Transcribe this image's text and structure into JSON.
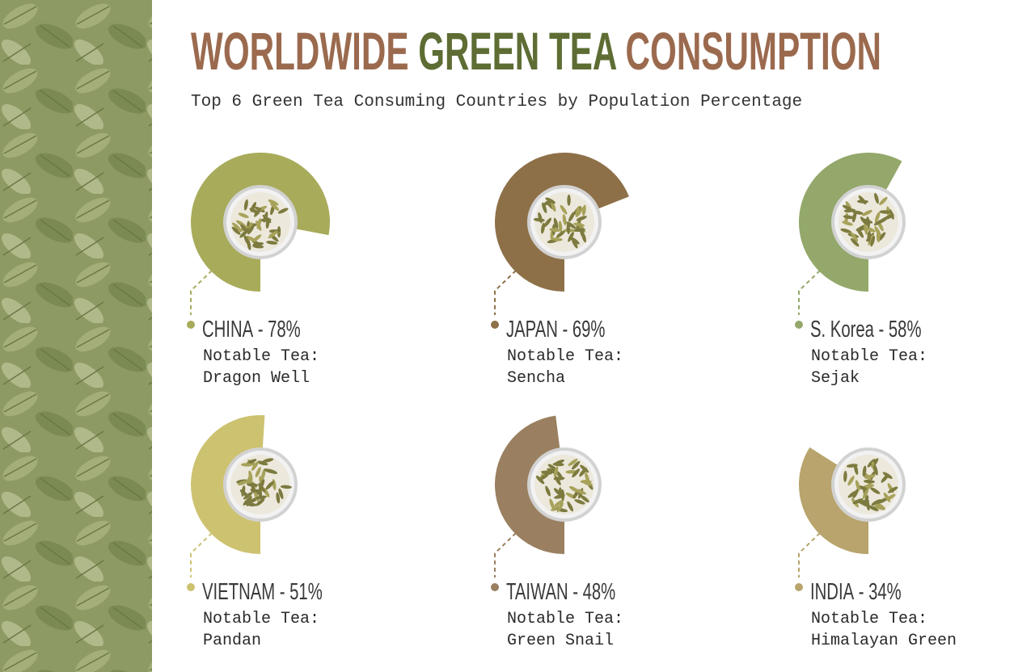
{
  "chart_data": {
    "type": "radial",
    "title": [
      "WORLDWIDE",
      "GREEN TEA",
      "CONSUMPTION"
    ],
    "subtitle": "Top 6 Green Tea Consuming Countries by Population Percentage",
    "categories": [
      "CHINA",
      "JAPAN",
      "S. Korea",
      "VIETNAM",
      "TAIWAN",
      "INDIA"
    ],
    "separator": "-",
    "values": [
      78,
      69,
      58,
      51,
      48,
      34
    ],
    "value_labels": [
      "78%",
      "69%",
      "58%",
      "51%",
      "48%",
      "34%"
    ],
    "note_label": "Notable Tea:",
    "teas": [
      "Dragon Well",
      "Sencha",
      "Sejak",
      "Pandan",
      "Green Snail",
      "Himalayan Green"
    ],
    "colors": [
      "#a8ab5a",
      "#8e7048",
      "#93a86a",
      "#cdc270",
      "#9a8060",
      "#b8a46c"
    ]
  }
}
